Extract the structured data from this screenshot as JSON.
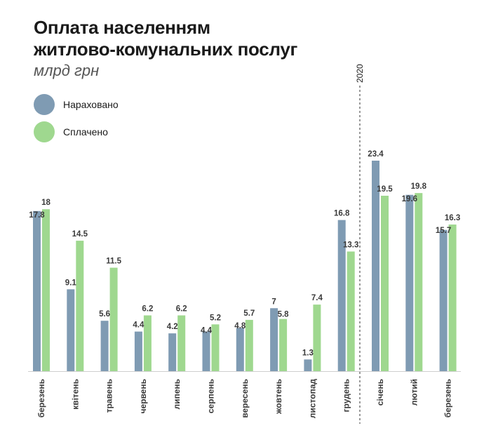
{
  "header": {
    "title_line1": "Оплата населенням",
    "title_line2": "житлово-комунальних послуг",
    "unit": "млрд грн"
  },
  "legend": [
    {
      "label": "Нараховано",
      "color": "#7f9bb3"
    },
    {
      "label": "Сплачено",
      "color": "#9fd88f"
    }
  ],
  "chart_data": {
    "type": "bar",
    "title": "Оплата населенням житлово-комунальних послуг",
    "subtitle": "млрд грн",
    "categories": [
      "березень",
      "квітень",
      "травень",
      "червень",
      "липень",
      "серпень",
      "вересень",
      "жовтень",
      "листопад",
      "грудень",
      "січень",
      "лютий",
      "березень"
    ],
    "series": [
      {
        "name": "Нараховано",
        "color": "#7f9bb3",
        "values": [
          17.8,
          9.1,
          5.6,
          4.4,
          4.2,
          4.4,
          4.8,
          7,
          1.3,
          16.8,
          23.4,
          19.6,
          15.7
        ]
      },
      {
        "name": "Сплачено",
        "color": "#9fd88f",
        "values": [
          18,
          14.5,
          11.5,
          6.2,
          6.2,
          5.2,
          5.7,
          5.8,
          7.4,
          13.3,
          19.5,
          19.8,
          16.3
        ]
      }
    ],
    "ylim": [
      0,
      23.4
    ],
    "grid": false,
    "legend_position": "top-left",
    "annotations": [
      {
        "type": "vertical-divider",
        "between": [
          "грудень",
          "січень"
        ],
        "label": "2020"
      }
    ]
  }
}
